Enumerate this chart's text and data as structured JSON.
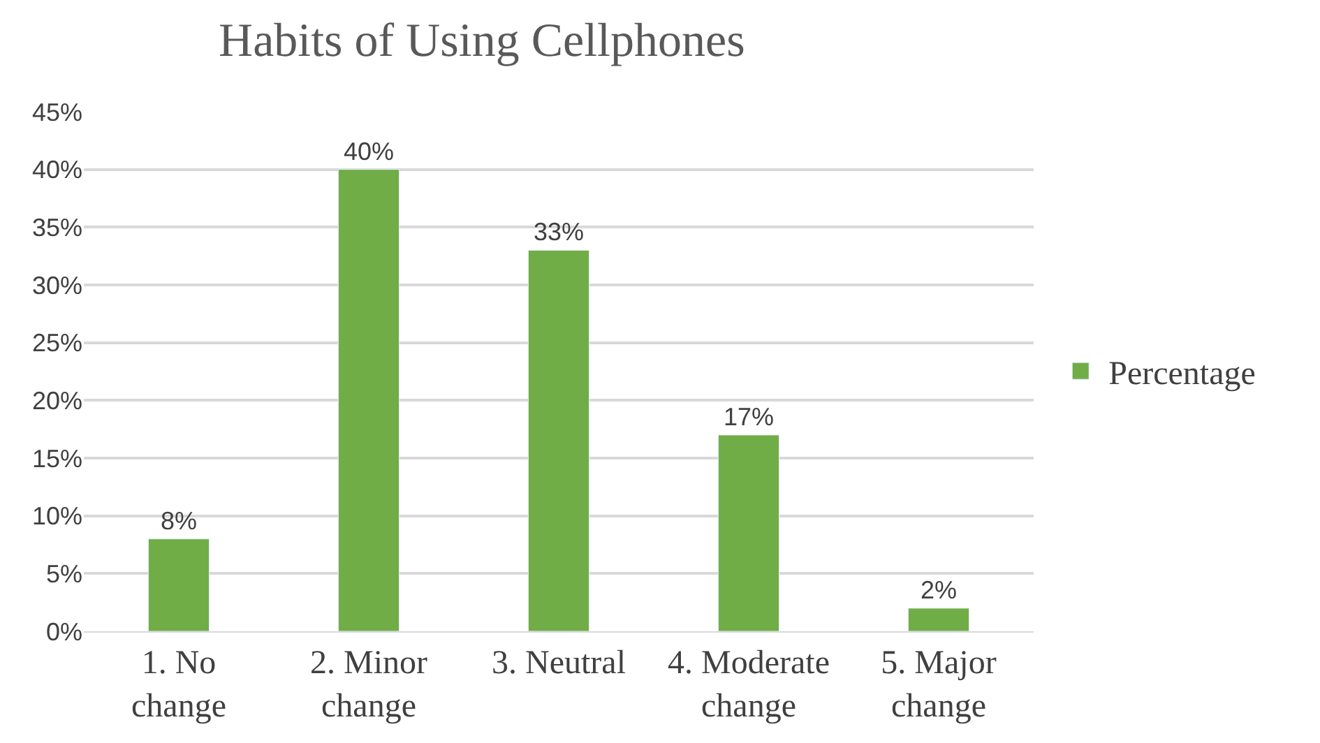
{
  "chart_data": {
    "type": "bar",
    "title": "Habits of Using Cellphones",
    "categories": [
      "1. No change",
      "2. Minor change",
      "3. Neutral",
      "4. Moderate change",
      "5. Major change"
    ],
    "series": [
      {
        "name": "Percentage",
        "color": "#70ad47",
        "values": [
          8,
          40,
          33,
          17,
          2
        ],
        "value_labels": [
          "8%",
          "40%",
          "33%",
          "17%",
          "2%"
        ]
      }
    ],
    "ylim": [
      0,
      45
    ],
    "yticks": [
      {
        "value": 0,
        "label": "0%"
      },
      {
        "value": 5,
        "label": "5%"
      },
      {
        "value": 10,
        "label": "10%"
      },
      {
        "value": 15,
        "label": "15%"
      },
      {
        "value": 20,
        "label": "20%"
      },
      {
        "value": 25,
        "label": "25%"
      },
      {
        "value": 30,
        "label": "30%"
      },
      {
        "value": 35,
        "label": "35%"
      },
      {
        "value": 40,
        "label": "40%"
      },
      {
        "value": 45,
        "label": "45%"
      }
    ],
    "grid": "y",
    "legend": "right"
  }
}
